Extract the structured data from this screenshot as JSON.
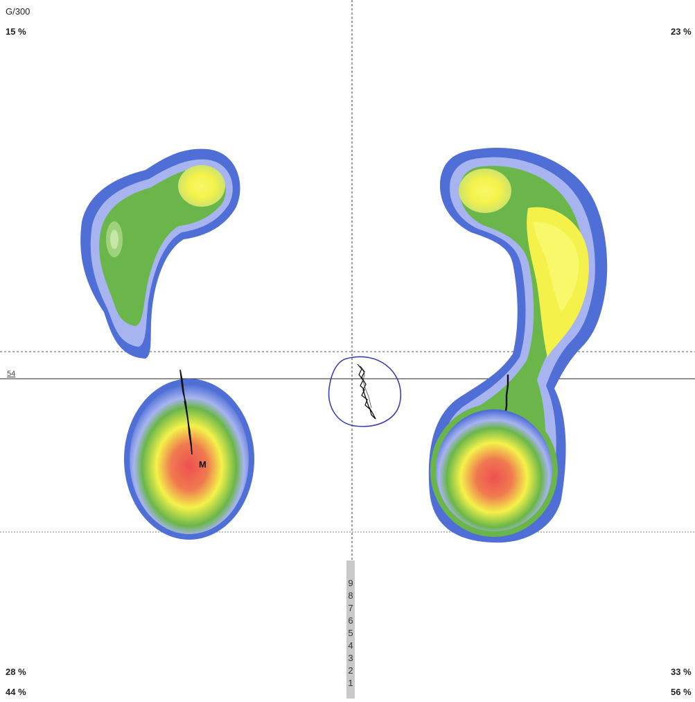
{
  "header": {
    "scale_code": "G/300"
  },
  "quadrants": {
    "top_left": "15 %",
    "top_right": "23 %",
    "bottom_left_upper": "28 %",
    "bottom_left_lower": "44 %",
    "bottom_right_upper": "33 %",
    "bottom_right_lower": "56 %"
  },
  "reference_line_value": "54",
  "heel_marker": "M",
  "scale_ticks": [
    "9",
    "8",
    "7",
    "6",
    "5",
    "4",
    "3",
    "2",
    "1"
  ],
  "colors": {
    "pressure_low": "#4f6fd6",
    "pressure_light": "#a8b4f0",
    "pressure_mid": "#6ab64a",
    "pressure_high": "#f4f24a",
    "pressure_peak": "#ee5050",
    "trace_ring": "#3a3fb0"
  }
}
